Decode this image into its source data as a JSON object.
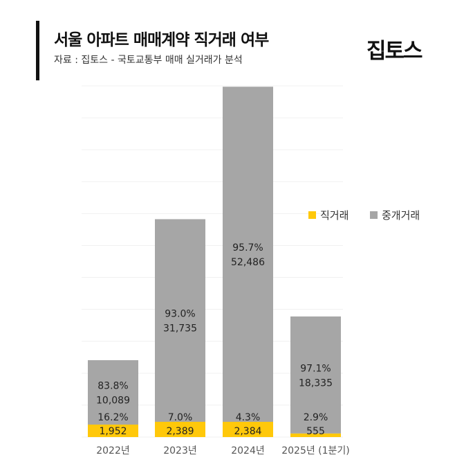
{
  "header": {
    "title": "서울 아파트 매매계약 직거래 여부",
    "subtitle": "자료 : 집토스 - 국토교통부 매매 실거래가 분석",
    "logo": "집토스"
  },
  "chart_data": {
    "type": "bar",
    "stacked": true,
    "title": "서울 아파트 매매계약 직거래 여부",
    "categories": [
      "2022년",
      "2023년",
      "2024년",
      "2025년 (1분기)"
    ],
    "series": [
      {
        "name": "직거래",
        "color": "#FFC80A",
        "values": [
          1952,
          2389,
          2384,
          555
        ],
        "value_labels": [
          "1,952",
          "2,389",
          "2,384",
          "555"
        ],
        "pct_labels": [
          "16.2%",
          "7.0%",
          "4.3%",
          "2.9%"
        ]
      },
      {
        "name": "중개거래",
        "color": "#A6A6A6",
        "values": [
          10089,
          31735,
          52486,
          18335
        ],
        "value_labels": [
          "10,089",
          "31,735",
          "52,486",
          "18,335"
        ],
        "pct_labels": [
          "83.8%",
          "93.0%",
          "95.7%",
          "97.1%"
        ]
      }
    ],
    "ylim": [
      0,
      55000
    ],
    "grid": true,
    "legend": "right"
  }
}
